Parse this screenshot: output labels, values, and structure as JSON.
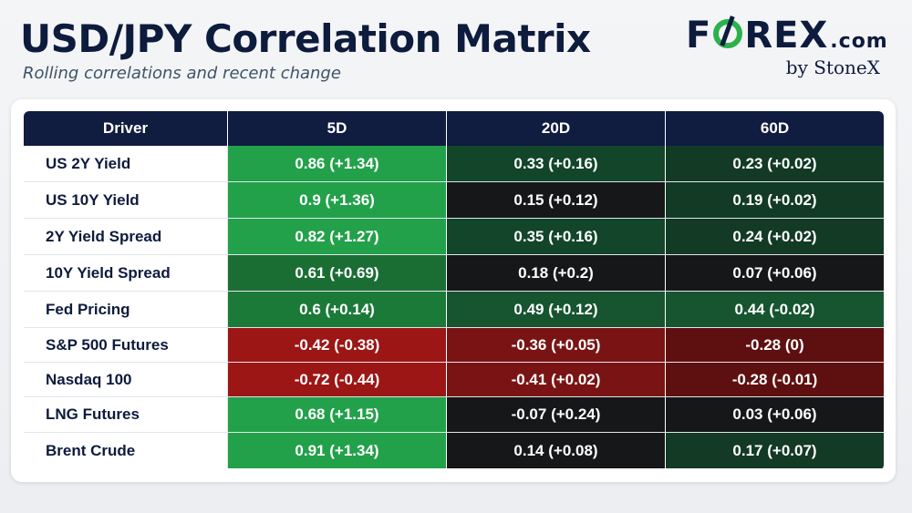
{
  "header": {
    "title": "USD/JPY Correlation Matrix",
    "subtitle": "Rolling correlations and recent change"
  },
  "logo": {
    "brand_prefix": "F",
    "brand_suffix": "REX",
    "brand_tld": ".com",
    "byline": "by StoneX",
    "colors": {
      "text": "#0d1b3d",
      "accent": "#2bb24c"
    }
  },
  "chart_data": {
    "type": "table",
    "columns": [
      "Driver",
      "5D",
      "20D",
      "60D"
    ],
    "rows": [
      {
        "driver": "US 2Y Yield",
        "cells": [
          {
            "text": "0.86 (+1.34)",
            "color": "#22a14a"
          },
          {
            "text": "0.33 (+0.16)",
            "color": "#12452a"
          },
          {
            "text": "0.23 (+0.02)",
            "color": "#123a24"
          }
        ]
      },
      {
        "driver": "US 10Y Yield",
        "cells": [
          {
            "text": "0.9 (+1.36)",
            "color": "#22a14a"
          },
          {
            "text": "0.15 (+0.12)",
            "color": "#151718"
          },
          {
            "text": "0.19 (+0.02)",
            "color": "#123a24"
          }
        ]
      },
      {
        "driver": "2Y Yield Spread",
        "cells": [
          {
            "text": "0.82 (+1.27)",
            "color": "#22a14a"
          },
          {
            "text": "0.35 (+0.16)",
            "color": "#12452a"
          },
          {
            "text": "0.24 (+0.02)",
            "color": "#123a24"
          }
        ]
      },
      {
        "driver": "10Y Yield Spread",
        "cells": [
          {
            "text": "0.61 (+0.69)",
            "color": "#1a6e34"
          },
          {
            "text": "0.18 (+0.2)",
            "color": "#151718"
          },
          {
            "text": "0.07 (+0.06)",
            "color": "#151718"
          }
        ]
      },
      {
        "driver": "Fed Pricing",
        "cells": [
          {
            "text": "0.6 (+0.14)",
            "color": "#1c7a38"
          },
          {
            "text": "0.49 (+0.12)",
            "color": "#16552f"
          },
          {
            "text": "0.44 (-0.02)",
            "color": "#16552f"
          }
        ]
      },
      {
        "driver": "S&P 500 Futures",
        "cells": [
          {
            "text": "-0.42 (-0.38)",
            "color": "#9c1616"
          },
          {
            "text": "-0.36 (+0.05)",
            "color": "#7a1414"
          },
          {
            "text": "-0.28 (0)",
            "color": "#5e1010"
          }
        ]
      },
      {
        "driver": "Nasdaq 100",
        "cells": [
          {
            "text": "-0.72 (-0.44)",
            "color": "#9c1616"
          },
          {
            "text": "-0.41 (+0.02)",
            "color": "#7a1414"
          },
          {
            "text": "-0.28 (-0.01)",
            "color": "#5e1010"
          }
        ]
      },
      {
        "driver": "LNG Futures",
        "cells": [
          {
            "text": "0.68 (+1.15)",
            "color": "#22a14a"
          },
          {
            "text": "-0.07 (+0.24)",
            "color": "#151718"
          },
          {
            "text": "0.03 (+0.06)",
            "color": "#151718"
          }
        ]
      },
      {
        "driver": "Brent Crude",
        "cells": [
          {
            "text": "0.91 (+1.34)",
            "color": "#22a14a"
          },
          {
            "text": "0.14 (+0.08)",
            "color": "#151718"
          },
          {
            "text": "0.17 (+0.07)",
            "color": "#123a24"
          }
        ]
      }
    ]
  }
}
